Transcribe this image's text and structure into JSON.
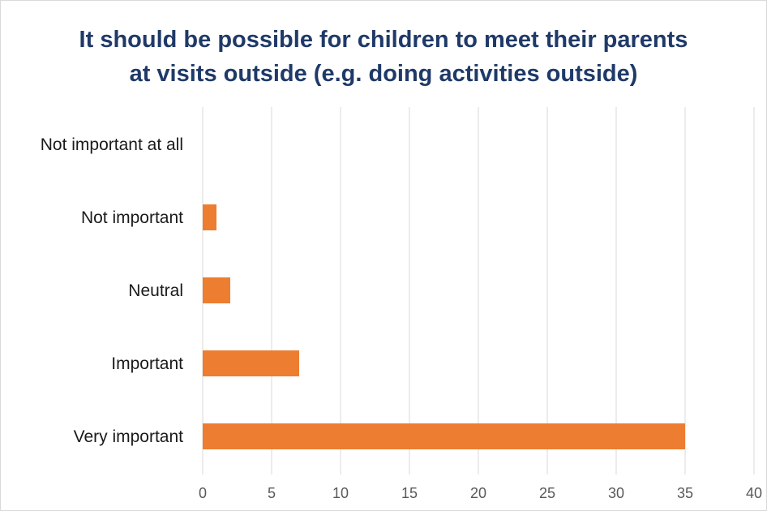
{
  "chart_data": {
    "type": "bar",
    "orientation": "horizontal",
    "title_lines": [
      "It should be possible for children to meet their parents",
      "at visits outside (e.g. doing activities outside)"
    ],
    "categories": [
      "Not important at all",
      "Not important",
      "Neutral",
      "Important",
      "Very important"
    ],
    "values": [
      0,
      1,
      2,
      7,
      35
    ],
    "xlim": [
      0,
      40
    ],
    "xticks": [
      "0",
      "5",
      "10",
      "15",
      "20",
      "25",
      "30",
      "35",
      "40"
    ],
    "xlabel": "",
    "ylabel": "",
    "grid": "vertical",
    "legend": "none",
    "bar_color": "#ed7d31",
    "grid_color": "#d9d9d9",
    "title_color": "#1f3a68"
  }
}
